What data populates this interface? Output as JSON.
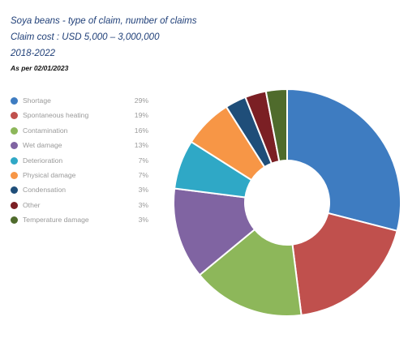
{
  "header": {
    "title_line1": "Soya beans - type of claim, number of claims",
    "title_line2": "Claim cost : USD 5,000 – 3,000,000",
    "title_line3": "2018-2022",
    "as_per": "As per 02/01/2023"
  },
  "chart_data": {
    "type": "pie",
    "donut": true,
    "legend_position": "left",
    "categories": [
      "Shortage",
      "Spontaneous heating",
      "Contamination",
      "Wet damage",
      "Deterioration",
      "Physical damage",
      "Condensation",
      "Other",
      "Temperature damage"
    ],
    "values": [
      29,
      19,
      16,
      13,
      7,
      7,
      3,
      3,
      3
    ],
    "value_labels": [
      "29%",
      "19%",
      "16%",
      "13%",
      "7%",
      "7%",
      "3%",
      "3%",
      "3%"
    ],
    "colors": [
      "#3e7cc1",
      "#c0504d",
      "#8db75a",
      "#8064a2",
      "#2fa8c6",
      "#f79646",
      "#1f4e79",
      "#7b1f24",
      "#4f6b2c"
    ]
  }
}
